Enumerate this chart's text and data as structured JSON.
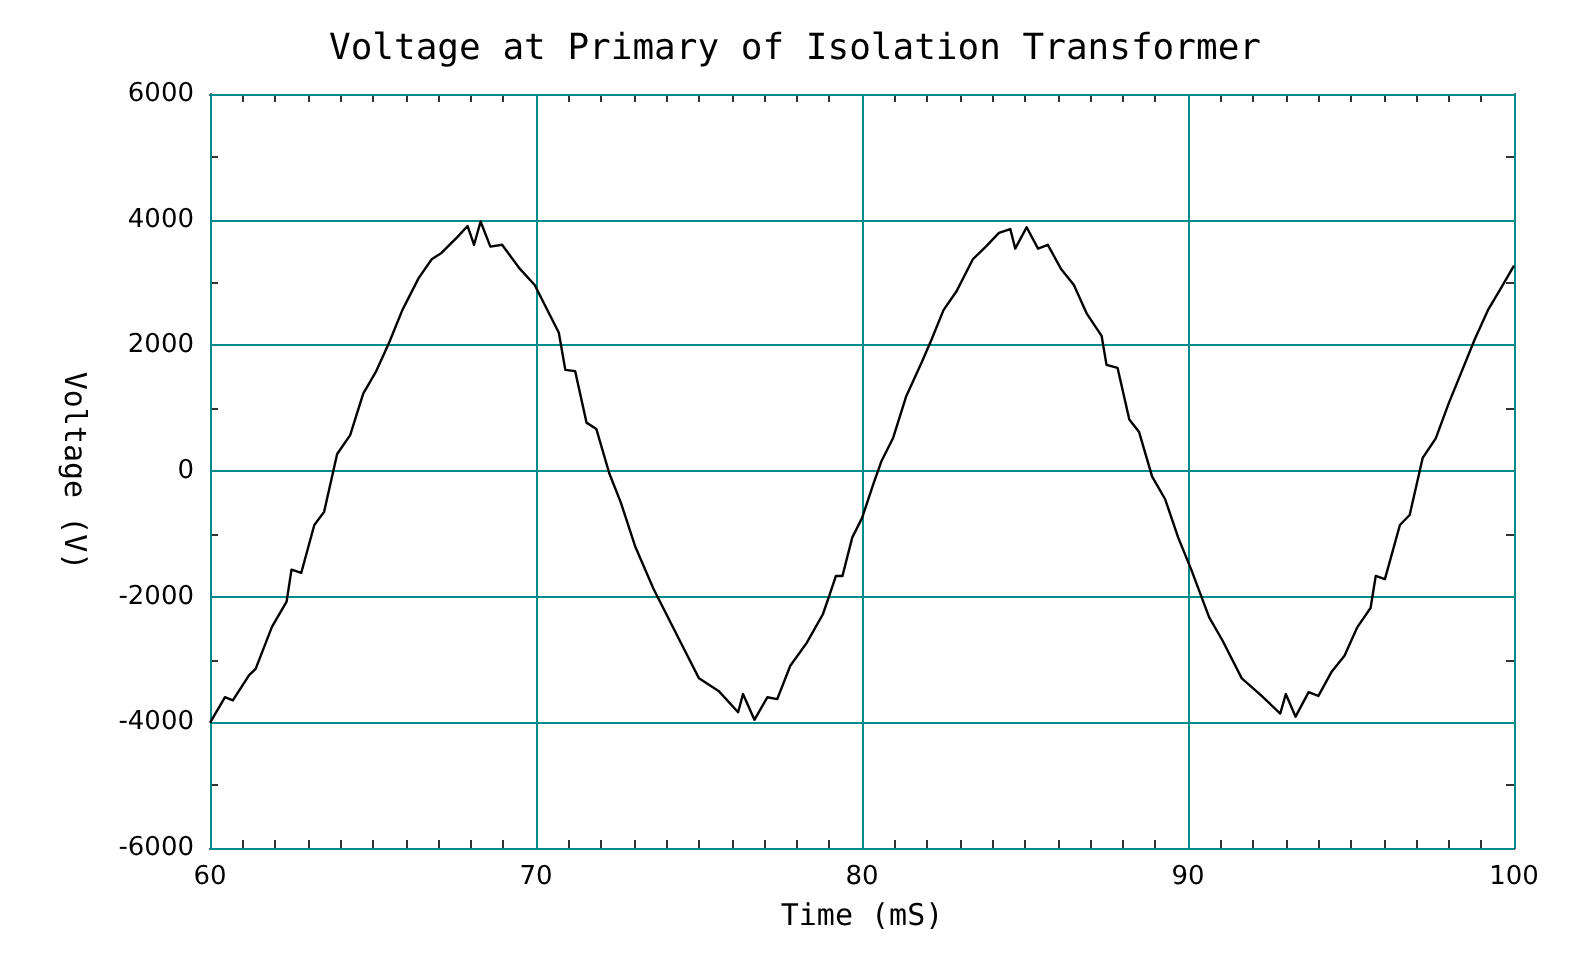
{
  "chart_data": {
    "type": "line",
    "title": "Voltage at Primary of Isolation Transformer",
    "xlabel": "Time (mS)",
    "ylabel": "Voltage (V)",
    "xlim": [
      60,
      100
    ],
    "xticks": [
      60,
      70,
      80,
      90,
      100
    ],
    "ylim": [
      -6000,
      6000
    ],
    "yticks": [
      -6000,
      -4000,
      -2000,
      0,
      2000,
      4000,
      6000
    ],
    "grid": true,
    "marker": "none",
    "line_style": "solid",
    "series": [
      {
        "color": "#000000",
        "x": [
          60,
          60.46,
          60.7,
          61.2,
          61.4,
          61.9,
          62.35,
          62.5,
          62.8,
          63.2,
          63.5,
          63.9,
          64.3,
          64.7,
          65.1,
          65.5,
          65.9,
          66.4,
          66.8,
          67.1,
          67.6,
          67.9,
          68.1,
          68.3,
          68.6,
          68.96,
          69.5,
          69.96,
          70.7,
          70.9,
          71.2,
          71.55,
          71.85,
          72.25,
          72.6,
          73.05,
          73.6,
          74.4,
          75,
          75.6,
          76.2,
          76.35,
          76.7,
          77.1,
          77.4,
          77.8,
          78.3,
          78.8,
          79,
          79.2,
          79.4,
          79.7,
          80,
          80.36,
          80.6,
          80.95,
          81.35,
          81.84,
          82.14,
          82.5,
          82.9,
          83.4,
          83.8,
          84.2,
          84.55,
          84.7,
          85.05,
          85.4,
          85.7,
          86.1,
          86.5,
          86.9,
          87.35,
          87.5,
          87.84,
          88.2,
          88.5,
          88.9,
          89.3,
          89.7,
          90.1,
          90.65,
          91.05,
          91.65,
          92.2,
          92.83,
          93,
          93.3,
          93.7,
          94,
          94.4,
          94.8,
          95.2,
          95.6,
          95.76,
          96.04,
          96.5,
          96.8,
          97.2,
          97.6,
          98,
          98.4,
          98.8,
          99.2,
          99.6,
          100
        ],
        "values": [
          -4010,
          -3600,
          -3650,
          -3250,
          -3150,
          -2480,
          -2080,
          -1570,
          -1620,
          -860,
          -650,
          270,
          570,
          1230,
          1590,
          2050,
          2560,
          3070,
          3370,
          3470,
          3730,
          3900,
          3600,
          3970,
          3570,
          3600,
          3220,
          2960,
          2200,
          1610,
          1590,
          770,
          670,
          -40,
          -500,
          -1210,
          -1870,
          -2690,
          -3300,
          -3500,
          -3840,
          -3550,
          -3960,
          -3600,
          -3630,
          -3100,
          -2740,
          -2280,
          -1980,
          -1670,
          -1670,
          -1060,
          -750,
          -190,
          160,
          520,
          1180,
          1740,
          2100,
          2560,
          2860,
          3370,
          3570,
          3790,
          3850,
          3540,
          3880,
          3540,
          3600,
          3220,
          2960,
          2500,
          2150,
          1690,
          1640,
          820,
          620,
          -90,
          -450,
          -1060,
          -1570,
          -2330,
          -2690,
          -3300,
          -3550,
          -3860,
          -3550,
          -3910,
          -3520,
          -3580,
          -3200,
          -2940,
          -2480,
          -2180,
          -1670,
          -1720,
          -860,
          -700,
          210,
          520,
          1080,
          1590,
          2100,
          2560,
          2910,
          3270
        ]
      }
    ]
  }
}
